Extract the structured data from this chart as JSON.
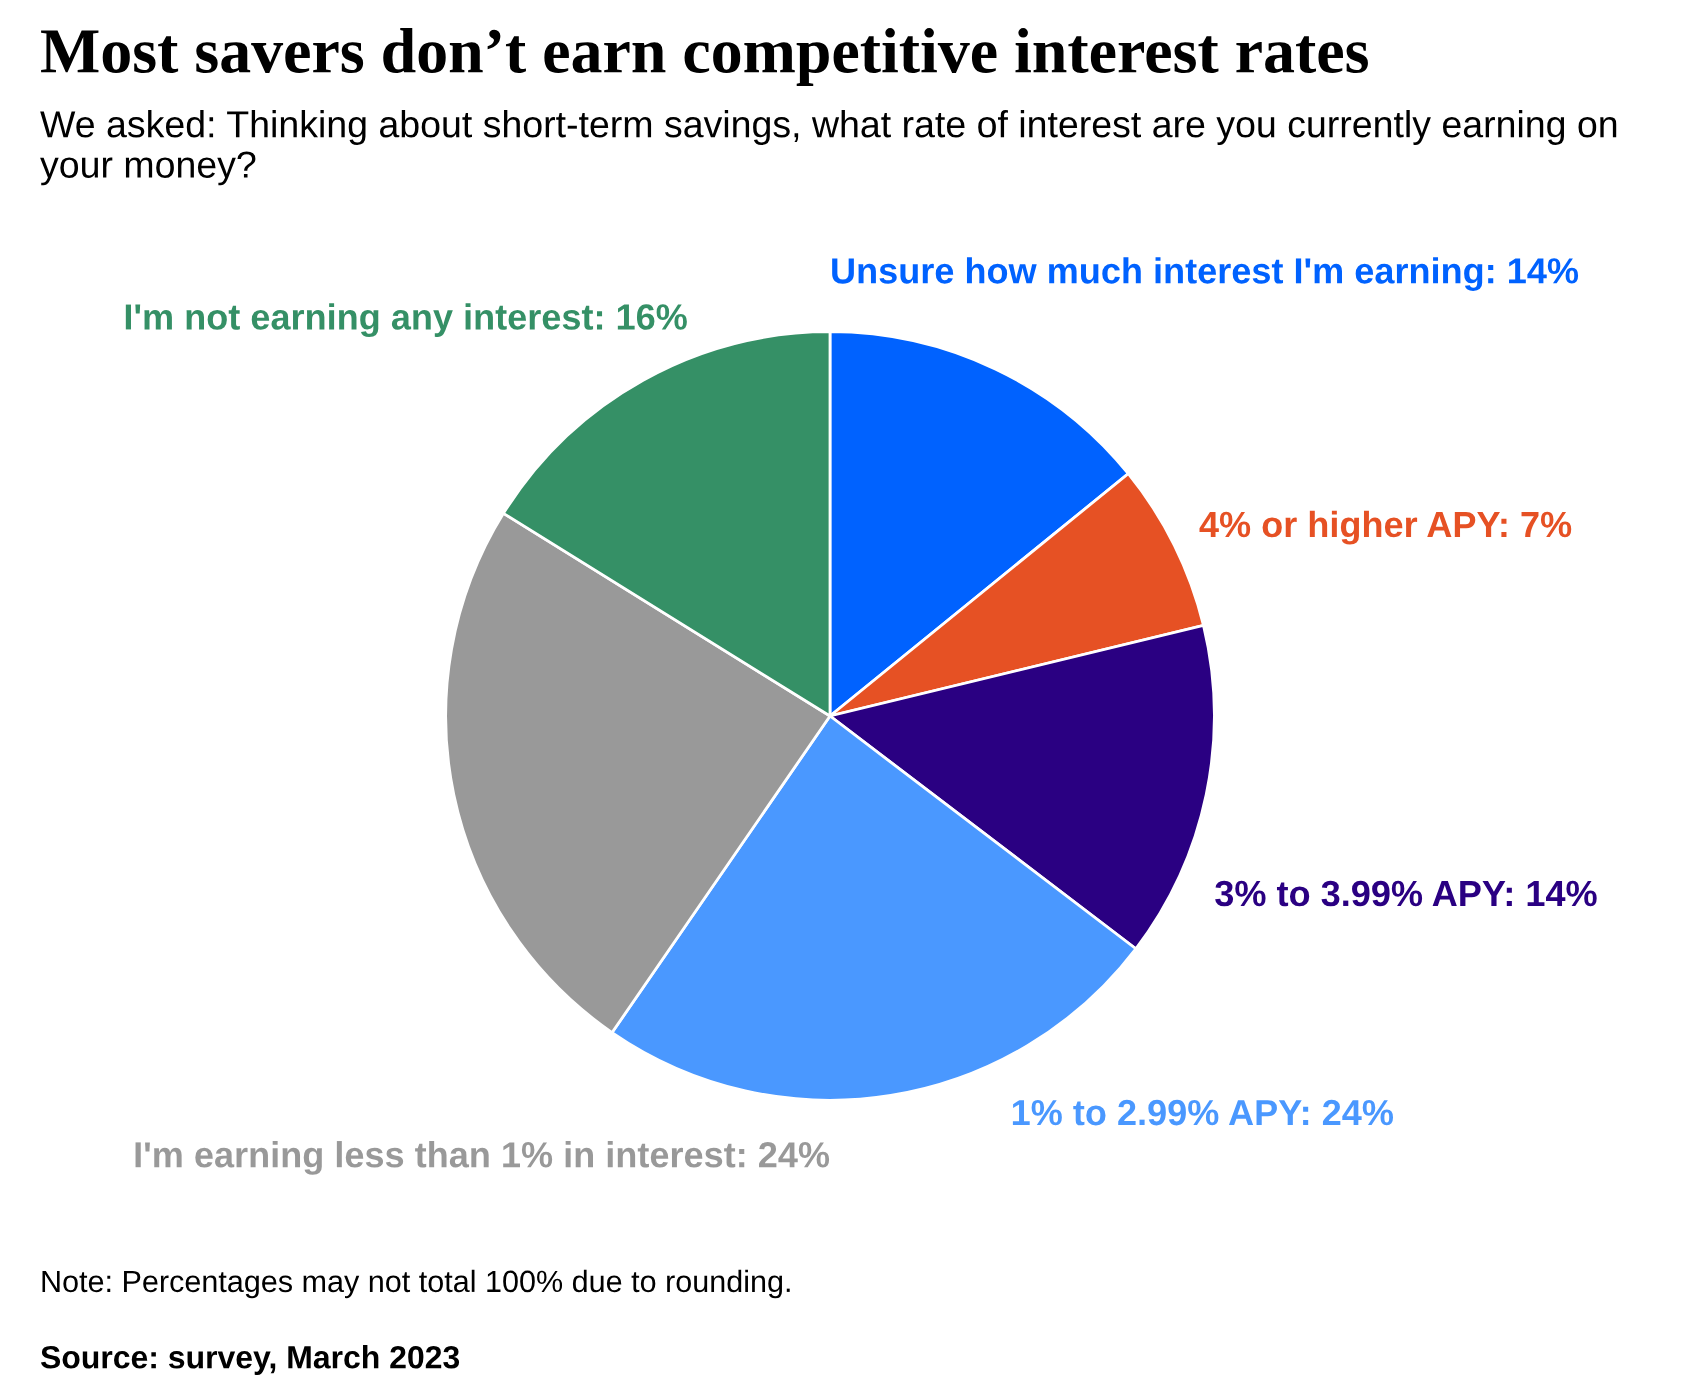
{
  "chart_data": {
    "type": "pie",
    "title": "Most savers don’t earn competitive interest rates",
    "subtitle": "We asked: Thinking about short-term savings, what rate of interest are you currently earning on your money?",
    "categories": [
      "Unsure how much interest I'm earning",
      "4% or higher APY",
      "3% to 3.99% APY",
      "1% to 2.99% APY",
      "I'm earning less than 1% in interest",
      "I'm not earning any interest"
    ],
    "values": [
      14,
      7,
      14,
      24,
      24,
      16
    ],
    "value_labels": [
      "14%",
      "7%",
      "14%",
      "24%",
      "24%",
      "16%"
    ],
    "colors": [
      "#0062ff",
      "#e65124",
      "#2a0082",
      "#4a98ff",
      "#999999",
      "#359066"
    ],
    "annotations": [
      "Note: Percentages may not total 100% due to rounding.",
      "Source: survey, March 2023"
    ]
  }
}
